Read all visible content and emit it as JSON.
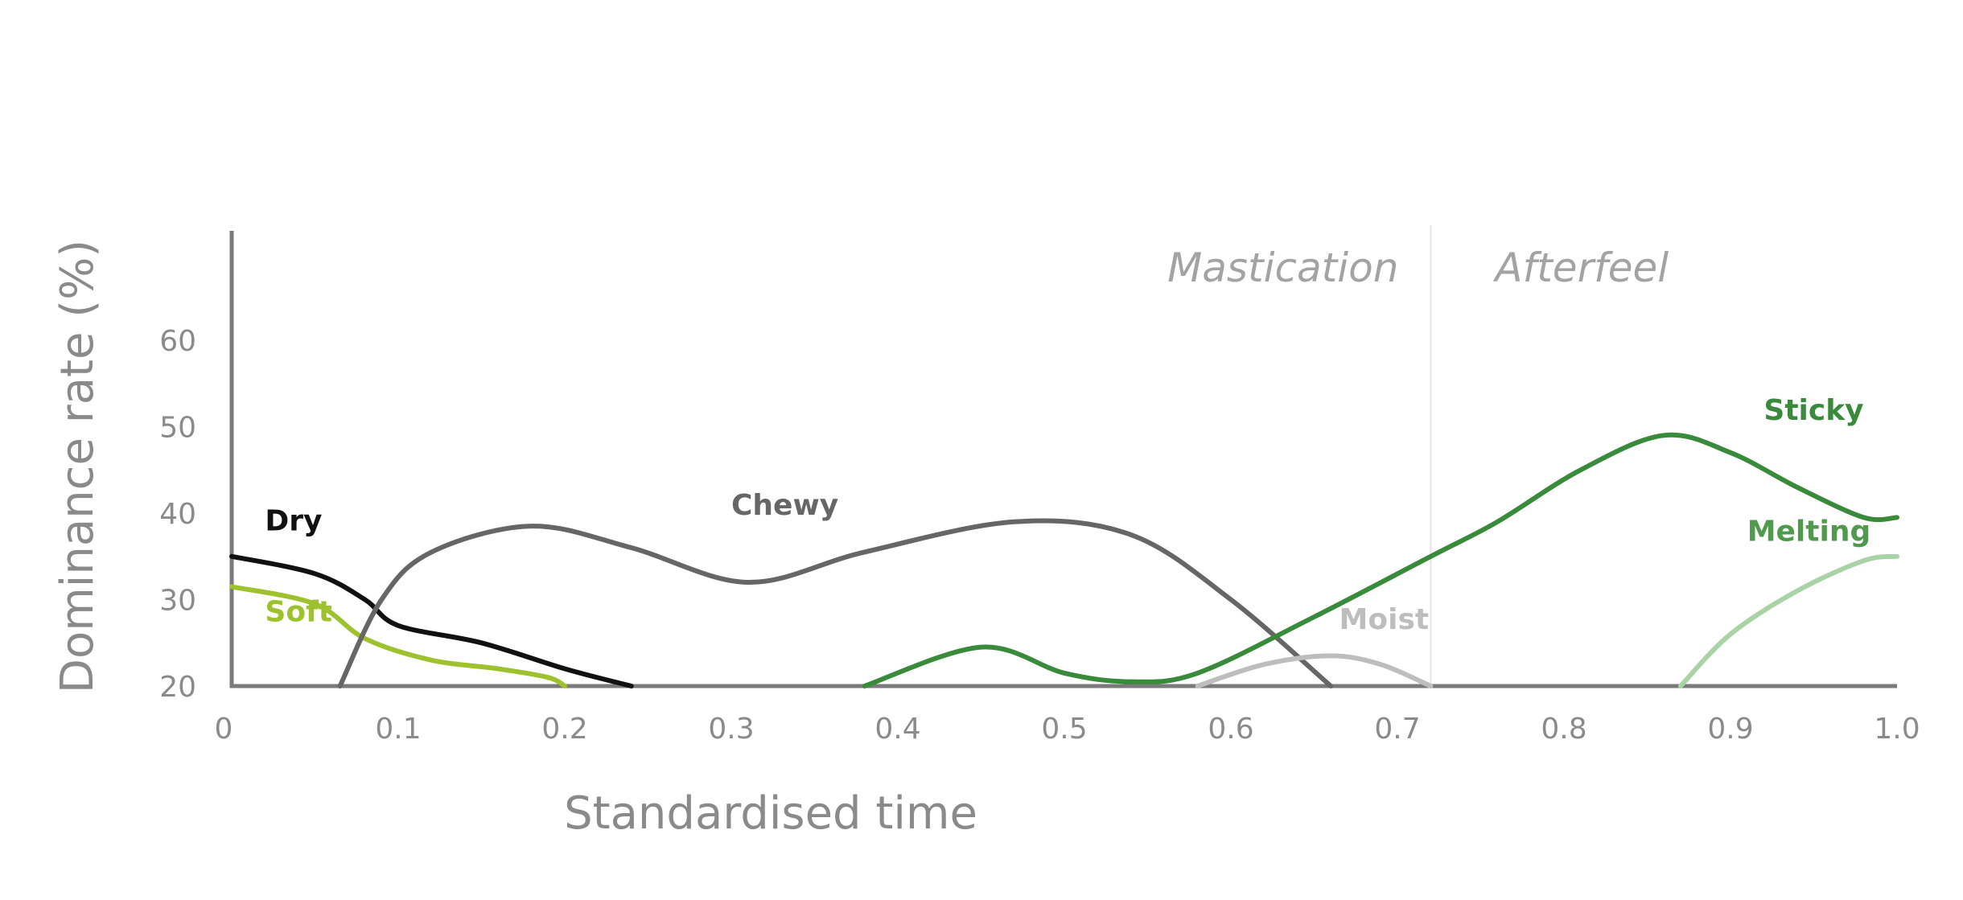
{
  "chart_data": {
    "type": "line",
    "title": "",
    "xlabel": "Standardised time",
    "ylabel": "Dominance rate (%)",
    "xlim": [
      0,
      1.0
    ],
    "ylim": [
      20,
      70
    ],
    "x_ticks": [
      "0",
      "0.1",
      "0.2",
      "0.3",
      "0.4",
      "0.5",
      "0.6",
      "0.7",
      "0.8",
      "0.9",
      "1.0"
    ],
    "y_ticks": [
      "20",
      "30",
      "40",
      "50",
      "60"
    ],
    "grid": false,
    "legend": "inline labels",
    "phases": [
      {
        "label": "Mastication",
        "x_end": 0.72
      },
      {
        "label": "Afterfeel",
        "x_start": 0.72
      }
    ],
    "phase_boundary_x": 0.72,
    "series": [
      {
        "name": "Dry",
        "color": "#111111",
        "x": [
          0,
          0.05,
          0.08,
          0.1,
          0.15,
          0.2,
          0.24
        ],
        "y": [
          35,
          33,
          30,
          27,
          25,
          22,
          20
        ]
      },
      {
        "name": "Soft",
        "color": "#9dc22d",
        "x": [
          0,
          0.05,
          0.08,
          0.12,
          0.16,
          0.19,
          0.2
        ],
        "y": [
          31.5,
          29.5,
          25.5,
          23,
          22,
          21,
          20
        ]
      },
      {
        "name": "Chewy",
        "color": "#666666",
        "x": [
          0.065,
          0.09,
          0.12,
          0.18,
          0.24,
          0.31,
          0.38,
          0.47,
          0.54,
          0.6,
          0.66
        ],
        "y": [
          20,
          30,
          35.5,
          38.5,
          36,
          32,
          35.5,
          39,
          37.5,
          30,
          20
        ]
      },
      {
        "name": "Sticky",
        "color": "#3a8a3c",
        "x": [
          0.38,
          0.45,
          0.5,
          0.54,
          0.58,
          0.65,
          0.72,
          0.76,
          0.81,
          0.86,
          0.9,
          0.94,
          0.98,
          1.0
        ],
        "y": [
          20,
          24.5,
          21.5,
          20.5,
          21.5,
          28,
          35,
          39,
          45,
          49,
          47,
          43,
          39.5,
          39.5
        ]
      },
      {
        "name": "Moist",
        "color": "#bdbdbd",
        "x": [
          0.58,
          0.62,
          0.66,
          0.69,
          0.72
        ],
        "y": [
          20,
          22.5,
          23.5,
          22.5,
          20
        ]
      },
      {
        "name": "Melting",
        "color": "#a9d3a6",
        "x": [
          0.87,
          0.9,
          0.94,
          0.98,
          1.0
        ],
        "y": [
          20,
          26,
          31,
          34.5,
          35
        ]
      }
    ]
  }
}
